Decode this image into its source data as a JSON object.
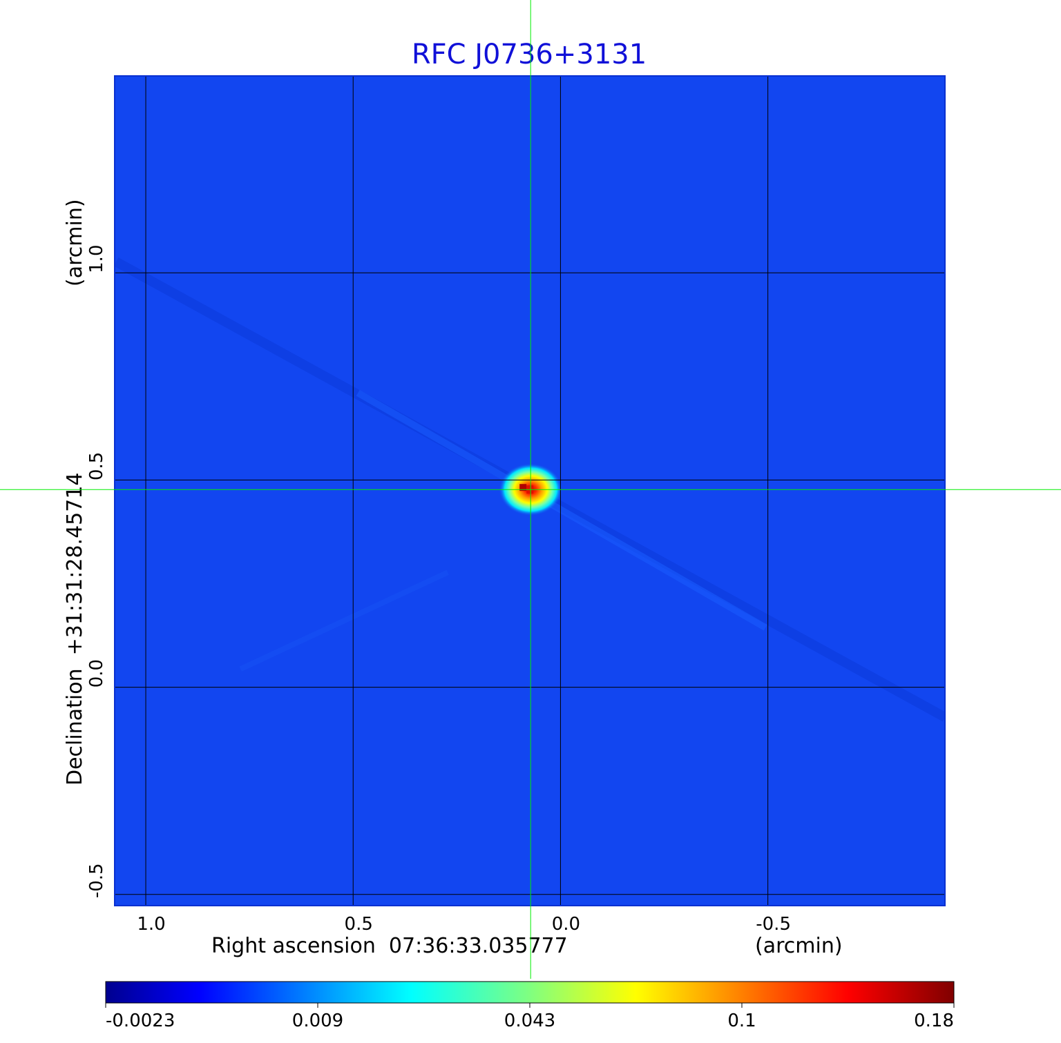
{
  "chart_data": {
    "type": "heatmap",
    "title": "RFC J0736+3131",
    "xlabel": "Right ascension  07:36:33.035777",
    "xunit": "(arcmin)",
    "ylabel": "Declination  +31:31:28.45714",
    "yunit": "(arcmin)",
    "x_ticks": [
      1.0,
      0.5,
      0.0,
      -0.5
    ],
    "x_tick_labels": [
      "1.0",
      "0.5",
      "0.0",
      "-0.5"
    ],
    "y_ticks": [
      1.0,
      0.5,
      0.0,
      -0.5
    ],
    "y_tick_labels": [
      "1.0",
      "0.5",
      "0.0",
      "-0.5"
    ],
    "xlim": [
      1.075,
      -0.927
    ],
    "ylim": [
      -0.527,
      1.475
    ],
    "grid": true,
    "colormap": "jet",
    "colorbar": {
      "orientation": "horizontal",
      "placement": "bottom",
      "ticks": [
        "-0.0023",
        "0.009",
        "0.043",
        "0.1",
        "0.18"
      ],
      "min": -0.0023,
      "max": 0.18
    },
    "crosshair": {
      "x": 0.072,
      "y": 0.477,
      "color": "#00ee00"
    },
    "source": {
      "x": 0.072,
      "y": 0.477,
      "peak": 0.18
    }
  },
  "colors": {
    "title": "#1010d8",
    "background_field": "#1246f0",
    "grid": "#000000",
    "crosshair": "#00ee00"
  }
}
